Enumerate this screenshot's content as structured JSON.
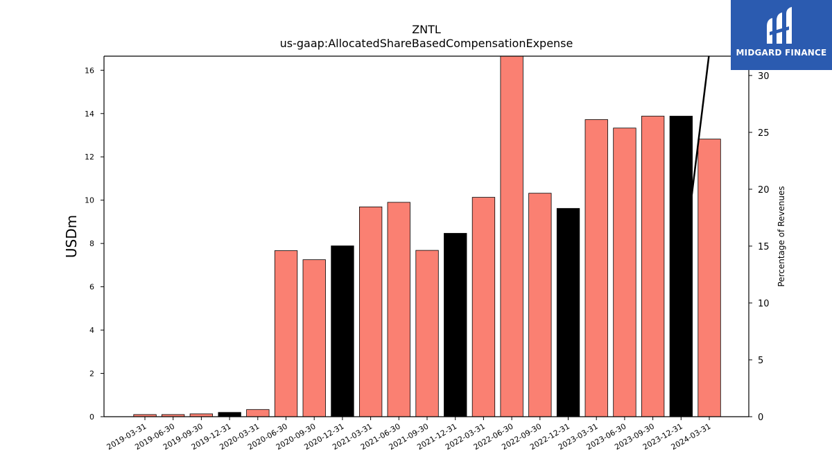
{
  "chart_data": {
    "type": "bar",
    "title": "ZNTL",
    "subtitle": "us-gaap:AllocatedShareBasedCompensationExpense",
    "ylabel": "USDm",
    "y2label": "Percentage of Revenues",
    "ylim": [
      0,
      16.65
    ],
    "y2lim": [
      0,
      31.7
    ],
    "yticks": [
      0,
      2,
      4,
      6,
      8,
      10,
      12,
      14,
      16
    ],
    "y2ticks": [
      0,
      5,
      10,
      15,
      20,
      25,
      30
    ],
    "categories": [
      "2019-03-31",
      "2019-06-30",
      "2019-09-30",
      "2019-12-31",
      "2020-03-31",
      "2020-06-30",
      "2020-09-30",
      "2020-12-31",
      "2021-03-31",
      "2021-06-30",
      "2021-09-30",
      "2021-12-31",
      "2022-03-31",
      "2022-06-30",
      "2022-09-30",
      "2022-12-31",
      "2023-03-31",
      "2023-06-30",
      "2023-09-30",
      "2023-12-31",
      "2024-03-31"
    ],
    "values": [
      0.1,
      0.1,
      0.13,
      0.2,
      0.33,
      7.67,
      7.25,
      7.89,
      9.69,
      9.9,
      7.68,
      8.47,
      10.13,
      16.65,
      10.32,
      9.62,
      13.72,
      13.33,
      13.88,
      13.88,
      12.82
    ],
    "bar_colors": [
      "#fa8072",
      "#fa8072",
      "#fa8072",
      "#000000",
      "#fa8072",
      "#fa8072",
      "#fa8072",
      "#000000",
      "#fa8072",
      "#fa8072",
      "#fa8072",
      "#000000",
      "#fa8072",
      "#fa8072",
      "#fa8072",
      "#000000",
      "#fa8072",
      "#fa8072",
      "#fa8072",
      "#000000",
      "#fa8072"
    ],
    "line": {
      "x": [
        "2023-12-31",
        "2024-03-31"
      ],
      "y2": [
        11.8,
        32.0
      ],
      "color": "#000000"
    },
    "grid": false
  },
  "logo": {
    "text": "MIDGARD FINANCE",
    "bg": "#2b5bb0"
  }
}
